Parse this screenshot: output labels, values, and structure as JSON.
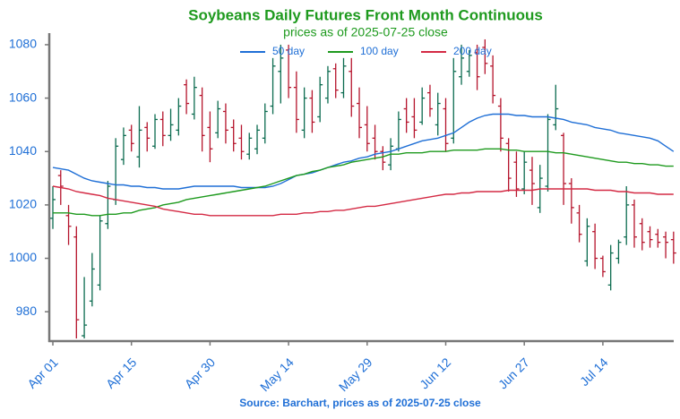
{
  "chart_data": {
    "type": "ohlc",
    "title": "Soybeans Daily Futures Front Month Continuous",
    "subtitle": "prices as of 2025-07-25 close",
    "source": "Source: Barchart, prices as of 2025-07-25 close",
    "categories": [
      "Apr 01",
      null,
      null,
      null,
      null,
      null,
      null,
      null,
      null,
      null,
      "Apr 15",
      null,
      null,
      null,
      null,
      null,
      null,
      null,
      null,
      null,
      "Apr 30",
      null,
      null,
      null,
      null,
      null,
      null,
      null,
      null,
      null,
      "May 14",
      null,
      null,
      null,
      null,
      null,
      null,
      null,
      null,
      null,
      "May 29",
      null,
      null,
      null,
      null,
      null,
      null,
      null,
      null,
      null,
      "Jun 12",
      null,
      null,
      null,
      null,
      null,
      null,
      null,
      null,
      null,
      "Jun 27",
      null,
      null,
      null,
      null,
      null,
      null,
      null,
      null,
      null,
      "Jul 14",
      null,
      null,
      null,
      null,
      null,
      null,
      null,
      null,
      null
    ],
    "open": [
      1015,
      1031,
      1016,
      1008,
      971,
      984,
      990,
      1013,
      1022,
      1037,
      1048,
      1038,
      1049,
      1042,
      1052,
      1046,
      1048,
      1065,
      1054,
      1061,
      1049,
      1047,
      1055,
      1049,
      1045,
      1039,
      1041,
      1045,
      1057,
      1070,
      1078,
      1064,
      1048,
      1060,
      1053,
      1060,
      1071,
      1062,
      1070,
      1058,
      1050,
      1045,
      1040,
      1035,
      1041,
      1056,
      1053,
      1051,
      1062,
      1050,
      1056,
      1045,
      1068,
      1070,
      1077,
      1079,
      1072,
      1057,
      1043,
      1036,
      1026,
      1033,
      1019,
      1027,
      1050,
      1046,
      1028,
      1017,
      999,
      1010,
      1000,
      990,
      1000,
      1008,
      1020,
      1013,
      1010,
      1009,
      1008,
      1007
    ],
    "high": [
      1027,
      1033,
      1020,
      1012,
      993,
      1002,
      1016,
      1029,
      1045,
      1049,
      1050,
      1057,
      1051,
      1054,
      1055,
      1056,
      1060,
      1067,
      1068,
      1064,
      1055,
      1059,
      1058,
      1052,
      1050,
      1047,
      1050,
      1058,
      1075,
      1080,
      1080,
      1070,
      1064,
      1063,
      1068,
      1072,
      1073,
      1075,
      1075,
      1064,
      1057,
      1050,
      1042,
      1045,
      1055,
      1060,
      1060,
      1064,
      1065,
      1062,
      1060,
      1075,
      1080,
      1078,
      1080,
      1082,
      1076,
      1060,
      1045,
      1040,
      1040,
      1038,
      1035,
      1054,
      1065,
      1047,
      1030,
      1020,
      1015,
      1013,
      1001,
      1005,
      1007,
      1027,
      1022,
      1015,
      1012,
      1011,
      1010,
      1010
    ],
    "low": [
      1011,
      1020,
      1005,
      970,
      970,
      982,
      988,
      1011,
      1020,
      1035,
      1040,
      1034,
      1040,
      1041,
      1042,
      1044,
      1046,
      1054,
      1052,
      1040,
      1036,
      1045,
      1043,
      1040,
      1037,
      1037,
      1039,
      1043,
      1054,
      1058,
      1060,
      1047,
      1045,
      1047,
      1051,
      1058,
      1060,
      1060,
      1053,
      1045,
      1040,
      1037,
      1033,
      1033,
      1040,
      1047,
      1045,
      1050,
      1053,
      1046,
      1040,
      1043,
      1065,
      1068,
      1063,
      1069,
      1058,
      1040,
      1025,
      1023,
      1024,
      1020,
      1017,
      1025,
      1048,
      1020,
      1013,
      1006,
      997,
      996,
      993,
      988,
      998,
      1005,
      1004,
      1003,
      1004,
      1004,
      1000,
      998
    ],
    "close": [
      1022,
      1027,
      1012,
      977,
      975,
      996,
      1014,
      1027,
      1042,
      1046,
      1043,
      1048,
      1045,
      1052,
      1046,
      1050,
      1057,
      1058,
      1064,
      1046,
      1041,
      1056,
      1048,
      1043,
      1040,
      1045,
      1048,
      1055,
      1072,
      1075,
      1064,
      1052,
      1060,
      1051,
      1065,
      1070,
      1063,
      1072,
      1057,
      1049,
      1043,
      1040,
      1036,
      1042,
      1052,
      1051,
      1048,
      1060,
      1056,
      1058,
      1043,
      1070,
      1075,
      1076,
      1068,
      1073,
      1061,
      1045,
      1030,
      1026,
      1036,
      1028,
      1030,
      1052,
      1056,
      1028,
      1019,
      1009,
      1012,
      1000,
      995,
      1002,
      1006,
      1020,
      1008,
      1006,
      1007,
      1006,
      1006,
      1002
    ],
    "up_color": "#0b6b4f",
    "down_color": "#b5142c",
    "series": [
      {
        "name": "50 day",
        "color": "#1f6fd6",
        "values": [
          1034,
          1033.5,
          1033,
          1031.5,
          1030,
          1029,
          1028.5,
          1028,
          1027.5,
          1027.5,
          1027,
          1027,
          1026.5,
          1026.5,
          1026,
          1026,
          1026,
          1026.5,
          1027,
          1027,
          1027,
          1027,
          1027,
          1027,
          1026.5,
          1026.5,
          1026.5,
          1026.5,
          1027,
          1028,
          1029.5,
          1031,
          1031.5,
          1032,
          1033,
          1034,
          1035,
          1036,
          1036.5,
          1037.5,
          1038,
          1039,
          1039.5,
          1040,
          1041,
          1042,
          1043,
          1044,
          1044.5,
          1045,
          1046,
          1047,
          1049,
          1051,
          1052.5,
          1053.5,
          1054,
          1054,
          1054,
          1053.5,
          1053.5,
          1053,
          1053,
          1053,
          1052.5,
          1052,
          1051,
          1050.5,
          1050,
          1049,
          1048.5,
          1048,
          1047,
          1046.5,
          1046,
          1045.5,
          1045,
          1044,
          1042,
          1040
        ]
      },
      {
        "name": "100 day",
        "color": "#1e9a1e",
        "values": [
          1017,
          1017,
          1017,
          1016.5,
          1016.5,
          1016,
          1016,
          1016.5,
          1016.5,
          1017,
          1017,
          1018,
          1018.5,
          1019,
          1020,
          1020.5,
          1021,
          1022,
          1022.5,
          1023,
          1023.5,
          1024,
          1024.5,
          1025,
          1025.5,
          1026,
          1026.5,
          1027,
          1028,
          1029,
          1030,
          1031,
          1031.5,
          1032.5,
          1033,
          1034,
          1034.5,
          1035,
          1036,
          1036.5,
          1037,
          1037.5,
          1038,
          1039,
          1039,
          1039.5,
          1039.5,
          1039.5,
          1040,
          1040,
          1040,
          1040.5,
          1040.5,
          1040.5,
          1040.5,
          1041,
          1041,
          1041,
          1040.5,
          1040.5,
          1040,
          1040,
          1040,
          1040,
          1039.5,
          1039.5,
          1039,
          1038.5,
          1038,
          1037.5,
          1037,
          1036.5,
          1036,
          1036,
          1035.5,
          1035.5,
          1035,
          1035,
          1034.5,
          1034.5
        ]
      },
      {
        "name": "200 day",
        "color": "#d42a44",
        "values": [
          1027,
          1026.5,
          1026,
          1025,
          1024.5,
          1024,
          1023.5,
          1022.5,
          1022,
          1021.5,
          1021,
          1020.5,
          1020,
          1019.5,
          1018.5,
          1018,
          1017.5,
          1017,
          1016.5,
          1016.5,
          1016,
          1016,
          1016,
          1016,
          1016,
          1016,
          1016,
          1016,
          1016,
          1016.5,
          1016.5,
          1016.5,
          1017,
          1017,
          1017.5,
          1017.5,
          1018,
          1018,
          1018.5,
          1019,
          1019.5,
          1019.5,
          1020,
          1020.5,
          1021,
          1021.5,
          1022,
          1022.5,
          1023,
          1023.5,
          1024,
          1024,
          1024.5,
          1024.5,
          1025,
          1025,
          1025,
          1025,
          1025.5,
          1025.5,
          1025.5,
          1025.5,
          1026,
          1026,
          1026,
          1026,
          1026,
          1026,
          1026,
          1025.5,
          1025.5,
          1025.5,
          1025,
          1025,
          1024.5,
          1024.5,
          1024.5,
          1024,
          1024,
          1024
        ]
      }
    ],
    "ylim": [
      969,
      1084
    ],
    "yticks": [
      980,
      1000,
      1020,
      1040,
      1060,
      1080
    ],
    "legend": "top"
  }
}
